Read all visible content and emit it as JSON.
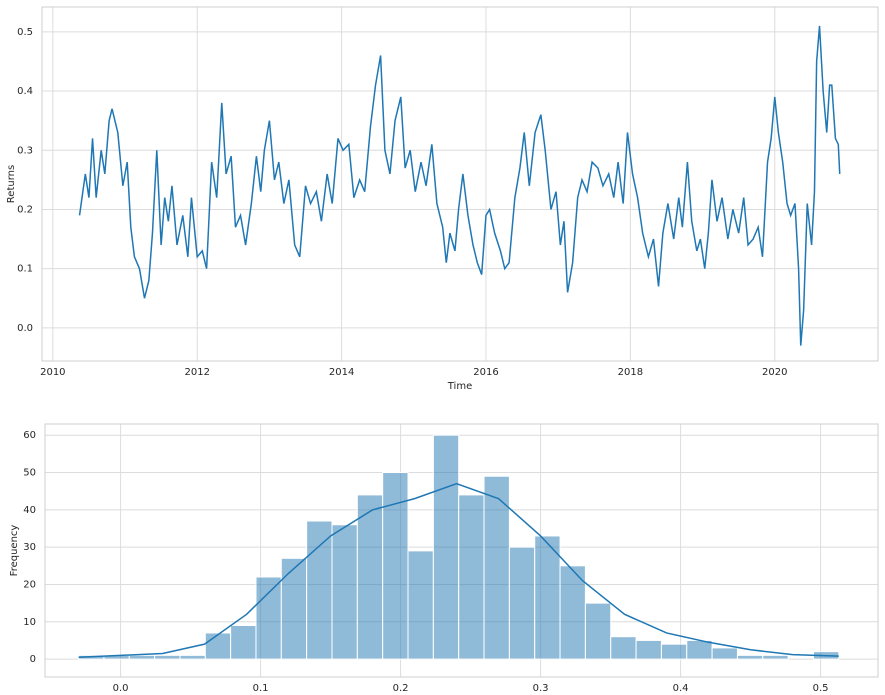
{
  "chart_data": [
    {
      "type": "line",
      "x_label": "Time",
      "y_label": "Returns",
      "color": "#1f77b4",
      "grid": true,
      "xlim": [
        2009.85,
        2021.43
      ],
      "ylim": [
        -0.056,
        0.542
      ],
      "xticks": [
        2010,
        2012,
        2014,
        2016,
        2018,
        2020
      ],
      "yticks": [
        {
          "value": 0,
          "label": "0.0"
        },
        0.1,
        0.2,
        0.3,
        0.4,
        0.5
      ],
      "x": [
        2010.37,
        2010.45,
        2010.5,
        2010.55,
        2010.6,
        2010.67,
        2010.72,
        2010.78,
        2010.82,
        2010.9,
        2010.97,
        2011.03,
        2011.08,
        2011.13,
        2011.2,
        2011.27,
        2011.33,
        2011.38,
        2011.44,
        2011.5,
        2011.55,
        2011.6,
        2011.65,
        2011.72,
        2011.8,
        2011.87,
        2011.92,
        2012.0,
        2012.07,
        2012.13,
        2012.2,
        2012.27,
        2012.34,
        2012.4,
        2012.47,
        2012.53,
        2012.6,
        2012.67,
        2012.75,
        2012.82,
        2012.88,
        2012.93,
        2013.0,
        2013.07,
        2013.13,
        2013.2,
        2013.27,
        2013.35,
        2013.42,
        2013.5,
        2013.57,
        2013.65,
        2013.72,
        2013.8,
        2013.87,
        2013.95,
        2014.02,
        2014.1,
        2014.17,
        2014.25,
        2014.32,
        2014.4,
        2014.47,
        2014.54,
        2014.6,
        2014.67,
        2014.74,
        2014.82,
        2014.88,
        2014.95,
        2015.02,
        2015.1,
        2015.17,
        2015.25,
        2015.32,
        2015.4,
        2015.45,
        2015.5,
        2015.57,
        2015.62,
        2015.68,
        2015.75,
        2015.82,
        2015.88,
        2015.94,
        2016.0,
        2016.05,
        2016.12,
        2016.2,
        2016.26,
        2016.32,
        2016.4,
        2016.47,
        2016.53,
        2016.6,
        2016.68,
        2016.76,
        2016.82,
        2016.9,
        2016.97,
        2017.03,
        2017.08,
        2017.13,
        2017.2,
        2017.27,
        2017.33,
        2017.4,
        2017.47,
        2017.55,
        2017.62,
        2017.7,
        2017.77,
        2017.83,
        2017.9,
        2017.96,
        2018.03,
        2018.1,
        2018.17,
        2018.25,
        2018.32,
        2018.39,
        2018.45,
        2018.52,
        2018.6,
        2018.67,
        2018.72,
        2018.79,
        2018.85,
        2018.92,
        2018.97,
        2019.03,
        2019.08,
        2019.13,
        2019.2,
        2019.27,
        2019.35,
        2019.42,
        2019.5,
        2019.57,
        2019.63,
        2019.7,
        2019.77,
        2019.83,
        2019.9,
        2019.95,
        2020.0,
        2020.05,
        2020.11,
        2020.17,
        2020.22,
        2020.28,
        2020.33,
        2020.36,
        2020.4,
        2020.45,
        2020.51,
        2020.55,
        2020.58,
        2020.62,
        2020.67,
        2020.72,
        2020.76,
        2020.79,
        2020.84,
        2020.88,
        2020.9
      ],
      "values": [
        0.19,
        0.26,
        0.22,
        0.32,
        0.22,
        0.3,
        0.26,
        0.35,
        0.37,
        0.33,
        0.24,
        0.28,
        0.17,
        0.12,
        0.1,
        0.05,
        0.08,
        0.16,
        0.3,
        0.14,
        0.22,
        0.18,
        0.24,
        0.14,
        0.19,
        0.12,
        0.22,
        0.12,
        0.13,
        0.1,
        0.28,
        0.22,
        0.38,
        0.26,
        0.29,
        0.17,
        0.19,
        0.14,
        0.21,
        0.29,
        0.23,
        0.3,
        0.35,
        0.25,
        0.28,
        0.21,
        0.25,
        0.14,
        0.12,
        0.24,
        0.21,
        0.23,
        0.18,
        0.26,
        0.21,
        0.32,
        0.3,
        0.31,
        0.22,
        0.25,
        0.23,
        0.34,
        0.41,
        0.46,
        0.3,
        0.26,
        0.35,
        0.39,
        0.27,
        0.3,
        0.23,
        0.28,
        0.24,
        0.31,
        0.21,
        0.17,
        0.11,
        0.16,
        0.13,
        0.2,
        0.26,
        0.19,
        0.14,
        0.11,
        0.09,
        0.19,
        0.2,
        0.16,
        0.13,
        0.1,
        0.11,
        0.22,
        0.27,
        0.33,
        0.24,
        0.33,
        0.36,
        0.3,
        0.2,
        0.23,
        0.14,
        0.18,
        0.06,
        0.11,
        0.22,
        0.25,
        0.23,
        0.28,
        0.27,
        0.24,
        0.26,
        0.22,
        0.28,
        0.21,
        0.33,
        0.26,
        0.22,
        0.16,
        0.12,
        0.15,
        0.07,
        0.16,
        0.21,
        0.15,
        0.22,
        0.17,
        0.28,
        0.18,
        0.13,
        0.15,
        0.1,
        0.16,
        0.25,
        0.18,
        0.22,
        0.15,
        0.2,
        0.16,
        0.22,
        0.14,
        0.15,
        0.17,
        0.12,
        0.28,
        0.32,
        0.39,
        0.33,
        0.28,
        0.21,
        0.19,
        0.21,
        0.1,
        -0.03,
        0.03,
        0.21,
        0.14,
        0.23,
        0.45,
        0.51,
        0.4,
        0.33,
        0.41,
        0.41,
        0.32,
        0.31,
        0.26
      ]
    },
    {
      "type": "histogram",
      "x_label": "Returns",
      "y_label": "Frequency",
      "color": "#1f77b4",
      "grid": true,
      "xlim": [
        -0.054,
        0.541
      ],
      "ylim": [
        -4.8,
        63.0
      ],
      "xticks": [
        {
          "value": 0,
          "label": "0.0"
        },
        0.1,
        0.2,
        0.3,
        0.4,
        0.5
      ],
      "yticks": [
        0,
        10,
        20,
        30,
        40,
        50,
        60
      ],
      "bins": [
        -0.03,
        -0.0119,
        0.0062,
        0.0243,
        0.0424,
        0.0605,
        0.0786,
        0.0967,
        0.1148,
        0.1329,
        0.151,
        0.1691,
        0.1872,
        0.2053,
        0.2234,
        0.2415,
        0.2596,
        0.2777,
        0.2958,
        0.3139,
        0.332,
        0.3501,
        0.3682,
        0.3863,
        0.4044,
        0.4225,
        0.4406,
        0.4587,
        0.4768,
        0.4949,
        0.513
      ],
      "values": [
        1,
        1,
        1,
        1,
        1,
        7,
        9,
        22,
        27,
        37,
        36,
        44,
        50,
        29,
        60,
        44,
        49,
        30,
        33,
        25,
        15,
        6,
        5,
        4,
        5,
        3,
        1,
        1,
        0,
        2
      ],
      "kde": {
        "x": [
          -0.03,
          0.0,
          0.03,
          0.06,
          0.09,
          0.12,
          0.15,
          0.18,
          0.21,
          0.24,
          0.27,
          0.3,
          0.33,
          0.36,
          0.39,
          0.42,
          0.45,
          0.48,
          0.513
        ],
        "values": [
          0.5,
          1,
          1.5,
          4,
          12,
          23,
          33,
          40,
          43,
          47,
          43,
          33,
          21,
          12,
          7,
          4.5,
          2.5,
          1.2,
          0.8
        ]
      }
    }
  ]
}
